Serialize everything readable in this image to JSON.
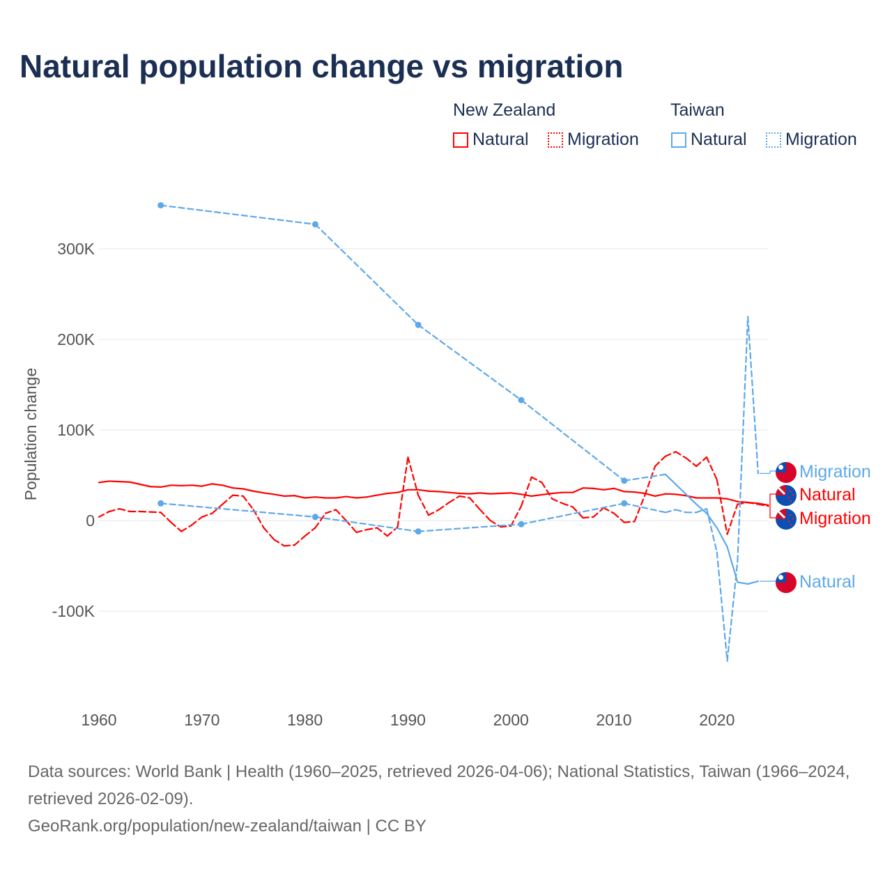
{
  "title": "Natural population change vs migration",
  "legend": {
    "groups": [
      {
        "name": "New Zealand",
        "color": "#ff0000",
        "items": [
          "Natural",
          "Migration"
        ]
      },
      {
        "name": "Taiwan",
        "color": "#5ea8ea",
        "items": [
          "Natural",
          "Migration"
        ]
      }
    ]
  },
  "footer": {
    "sources": "Data sources: World Bank | Health (1960–2025, retrieved 2026-04-06); National Statistics, Taiwan (1966–2024, retrieved 2026-02-09).",
    "credit": "GeoRank.org/population/new-zealand/taiwan | CC BY"
  },
  "chart_data": {
    "type": "line",
    "title": "Natural population change vs migration",
    "xlabel": "",
    "ylabel": "Population change",
    "xlim": [
      1960,
      2025
    ],
    "ylim": [
      -170000,
      370000
    ],
    "x_ticks": [
      1960,
      1970,
      1980,
      1990,
      2000,
      2010,
      2020
    ],
    "x_tick_labels": [
      "1960",
      "1970",
      "1980",
      "1990",
      "2000",
      "2010",
      "2020"
    ],
    "y_ticks": [
      -100000,
      0,
      100000,
      200000,
      300000
    ],
    "y_tick_labels": [
      "-100K",
      "0",
      "100K",
      "200K",
      "300K"
    ],
    "grid": true,
    "legend_position": "top-right",
    "series": [
      {
        "name": "New Zealand Natural",
        "country": "New Zealand",
        "kind": "Natural",
        "label": "Natural",
        "color": "#ff0000",
        "dashed": false,
        "flag": "nz",
        "x": [
          1960,
          1961,
          1962,
          1963,
          1964,
          1965,
          1966,
          1967,
          1968,
          1969,
          1970,
          1971,
          1972,
          1973,
          1974,
          1975,
          1976,
          1977,
          1978,
          1979,
          1980,
          1981,
          1982,
          1983,
          1984,
          1985,
          1986,
          1987,
          1988,
          1989,
          1990,
          1991,
          1992,
          1993,
          1994,
          1995,
          1996,
          1997,
          1998,
          1999,
          2000,
          2001,
          2002,
          2003,
          2004,
          2005,
          2006,
          2007,
          2008,
          2009,
          2010,
          2011,
          2012,
          2013,
          2014,
          2015,
          2016,
          2017,
          2018,
          2019,
          2020,
          2021,
          2022,
          2023,
          2024,
          2025
        ],
        "y": [
          42000,
          43500,
          43000,
          42500,
          40000,
          37500,
          37000,
          39000,
          38500,
          39000,
          38000,
          40500,
          39000,
          36000,
          35000,
          32500,
          30500,
          29000,
          27000,
          27500,
          25000,
          26000,
          25000,
          25000,
          26500,
          25000,
          26000,
          28000,
          30000,
          31000,
          34000,
          34000,
          32500,
          32000,
          31000,
          30000,
          29500,
          30500,
          29500,
          30000,
          30500,
          29000,
          27000,
          28500,
          30000,
          31000,
          31000,
          36000,
          35500,
          34000,
          35500,
          32000,
          31500,
          30000,
          27000,
          29500,
          29000,
          27500,
          25000,
          25000,
          25000,
          24000,
          21000,
          20000,
          19000,
          17000
        ]
      },
      {
        "name": "New Zealand Migration",
        "country": "New Zealand",
        "kind": "Migration",
        "label": "Migration",
        "color": "#ff0000",
        "dashed": true,
        "flag": "nz",
        "x": [
          1960,
          1961,
          1962,
          1963,
          1964,
          1965,
          1966,
          1967,
          1968,
          1969,
          1970,
          1971,
          1972,
          1973,
          1974,
          1975,
          1976,
          1977,
          1978,
          1979,
          1980,
          1981,
          1982,
          1983,
          1984,
          1985,
          1986,
          1987,
          1988,
          1989,
          1990,
          1991,
          1992,
          1993,
          1994,
          1995,
          1996,
          1997,
          1998,
          1999,
          2000,
          2001,
          2002,
          2003,
          2004,
          2005,
          2006,
          2007,
          2008,
          2009,
          2010,
          2011,
          2012,
          2013,
          2014,
          2015,
          2016,
          2017,
          2018,
          2019,
          2020,
          2021,
          2022,
          2023,
          2024,
          2025
        ],
        "y": [
          4000,
          10000,
          13000,
          10000,
          10000,
          9500,
          9000,
          -2000,
          -12000,
          -5000,
          4000,
          8000,
          18000,
          28000,
          27000,
          12000,
          -8000,
          -21000,
          -28000,
          -27000,
          -17000,
          -8000,
          8000,
          12000,
          0,
          -13000,
          -10000,
          -8000,
          -17000,
          -7000,
          70000,
          28000,
          6000,
          12000,
          20000,
          27000,
          25000,
          12000,
          0,
          -7000,
          -6000,
          16000,
          48000,
          42000,
          24000,
          19000,
          15000,
          3000,
          4000,
          14000,
          8000,
          -2000,
          -1000,
          28000,
          60000,
          71000,
          76000,
          69000,
          60000,
          70000,
          45000,
          -15000,
          18000,
          20000,
          18000,
          16000
        ]
      },
      {
        "name": "Taiwan Migration",
        "country": "Taiwan",
        "kind": "Migration",
        "label": "Migration",
        "color": "#5ea8ea",
        "dashed": true,
        "flag": "tw",
        "x": [
          1966,
          1981,
          1991,
          2001,
          2011,
          2015,
          2016,
          2017,
          2018,
          2019,
          2020,
          2021,
          2022,
          2023,
          2024
        ],
        "y": [
          19000,
          4000,
          -12000,
          -4000,
          19000,
          9000,
          12000,
          9000,
          9000,
          13000,
          -35000,
          -155000,
          -45000,
          225000,
          52000
        ]
      },
      {
        "name": "Taiwan Natural",
        "country": "Taiwan",
        "kind": "Natural",
        "label": "Natural",
        "color": "#5ea8ea",
        "dashed": false,
        "flag": "tw",
        "x": [
          1966,
          1981,
          1991,
          2001,
          2011,
          2015,
          2016,
          2017,
          2018,
          2019,
          2020,
          2021,
          2022,
          2023,
          2024
        ],
        "y": [
          348000,
          327000,
          216000,
          133000,
          44000,
          51000,
          40000,
          29000,
          18000,
          8000,
          -8000,
          -29000,
          -68000,
          -70000,
          -67000
        ]
      }
    ],
    "end_labels": [
      {
        "text": "Migration",
        "series": 2
      },
      {
        "text": "Natural",
        "series": 0
      },
      {
        "text": "Migration",
        "series": 1
      },
      {
        "text": "Natural",
        "series": 3
      }
    ]
  }
}
